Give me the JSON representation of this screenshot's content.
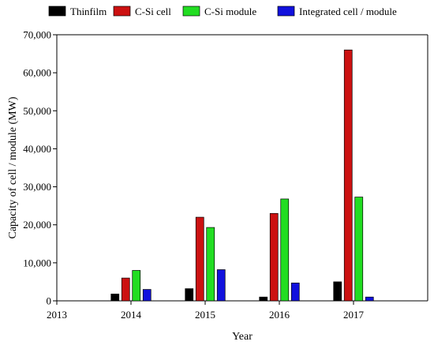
{
  "chart_data": {
    "type": "bar",
    "title": "",
    "xlabel": "Year",
    "ylabel": "Capacity of cell / module (MW)",
    "x_axis": {
      "min": 2013,
      "max": 2018,
      "tick_values": [
        2013,
        2014,
        2015,
        2016,
        2017
      ],
      "tick_labels": [
        "2013",
        "2014",
        "2015",
        "2016",
        "2017"
      ]
    },
    "ylim": [
      0,
      70000
    ],
    "y_ticks": [
      0,
      10000,
      20000,
      30000,
      40000,
      50000,
      60000,
      70000
    ],
    "y_tick_labels": [
      "0",
      "10,000",
      "20,000",
      "30,000",
      "40,000",
      "50,000",
      "60,000",
      "70,000"
    ],
    "categories": [
      "2014",
      "2015",
      "2016",
      "2017"
    ],
    "category_x": [
      2014,
      2015,
      2016,
      2017
    ],
    "grid": false,
    "legend_position": "top",
    "series": [
      {
        "name": "Thinfilm",
        "color": "#000000",
        "values": [
          1800,
          3200,
          1000,
          5000
        ]
      },
      {
        "name": "C-Si cell",
        "color": "#cc1111",
        "values": [
          6000,
          22000,
          23000,
          66000
        ]
      },
      {
        "name": "C-Si module",
        "color": "#22dd22",
        "values": [
          8000,
          19300,
          26800,
          27300
        ]
      },
      {
        "name": "Integrated cell / module",
        "color": "#1111dd",
        "values": [
          3000,
          8200,
          4700,
          1000
        ]
      }
    ]
  }
}
